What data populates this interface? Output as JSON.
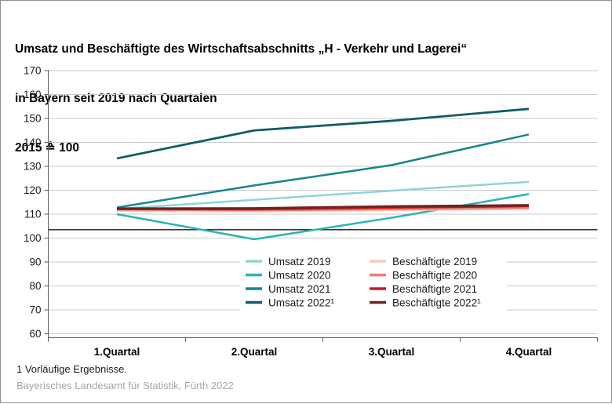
{
  "title": {
    "line1": "Umsatz und Beschäftigte des Wirtschaftsabschnitts „H - Verkehr und Lagerei“",
    "line2": "in Bayern seit 2019 nach Quartalen",
    "line3": "2015 ≙ 100"
  },
  "footnote": "1  Vorläufige Ergebnisse.",
  "source": "Bayerisches Landesamt für Statistik, Fürth 2022",
  "chart_data": {
    "type": "line",
    "categories": [
      "1.Quartal",
      "2.Quartal",
      "3.Quartal",
      "4.Quartal"
    ],
    "y_axis": {
      "min": 60,
      "max": 170,
      "step": 10
    },
    "grid": true,
    "legend_position": "inside-bottom-center",
    "reference_line": {
      "value": 103.5,
      "color": "#1a1a1a"
    },
    "axis_color": "#5a5a5a",
    "gridline_color": "#c9c9c9",
    "series": [
      {
        "name": "Umsatz 2019",
        "color": "#93d2d6",
        "width": 2.5,
        "values": [
          112.2,
          116.0,
          119.8,
          123.5
        ]
      },
      {
        "name": "Umsatz 2020",
        "color": "#29b3b7",
        "width": 2.5,
        "values": [
          110.0,
          99.5,
          108.5,
          118.4
        ]
      },
      {
        "name": "Umsatz 2021",
        "color": "#16868c",
        "width": 2.5,
        "values": [
          112.8,
          122.0,
          130.5,
          143.3
        ]
      },
      {
        "name": "Umsatz 2022¹",
        "color": "#0e5d68",
        "width": 2.8,
        "values": [
          133.3,
          145.0,
          149.0,
          154.0
        ]
      },
      {
        "name": "Beschäftigte 2019",
        "color": "#f7cabe",
        "width": 2.5,
        "values": [
          111.4,
          111.2,
          111.7,
          112.2
        ]
      },
      {
        "name": "Beschäftigte 2020",
        "color": "#ee8076",
        "width": 2.5,
        "values": [
          111.9,
          111.6,
          112.0,
          112.6
        ]
      },
      {
        "name": "Beschäftigte 2021",
        "color": "#cb1a17",
        "width": 2.5,
        "values": [
          112.1,
          112.0,
          112.7,
          113.3
        ]
      },
      {
        "name": "Beschäftigte 2022¹",
        "color": "#6f2320",
        "width": 3.2,
        "values": [
          112.3,
          112.4,
          113.2,
          113.7
        ]
      }
    ]
  }
}
